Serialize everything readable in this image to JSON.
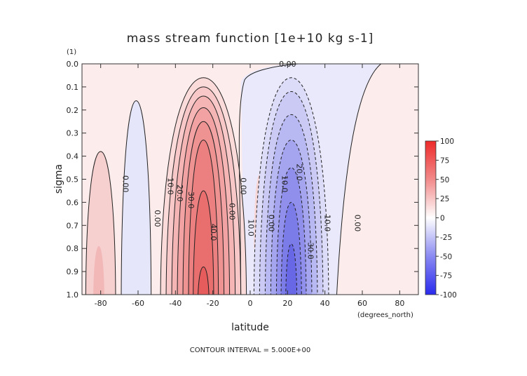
{
  "chart_data": {
    "type": "contour",
    "title": "mass stream function [1e+10 kg s-1]",
    "xlabel": "latitude",
    "ylabel": "sigma",
    "x_units": "(degrees_north)",
    "y_units": "(1)",
    "footer": "CONTOUR INTERVAL = 5.000E+00",
    "xlim": [
      -90,
      90
    ],
    "ylim": [
      1.0,
      0.0
    ],
    "x_ticks": [
      "-80",
      "-60",
      "-40",
      "-20",
      "0",
      "20",
      "40",
      "60",
      "80"
    ],
    "y_ticks": [
      "0.0",
      "0.1",
      "0.2",
      "0.3",
      "0.4",
      "0.5",
      "0.6",
      "0.7",
      "0.8",
      "0.9",
      "1.0"
    ],
    "contour_interval": 5.0,
    "colorbar": {
      "ticks": [
        "100",
        "75",
        "50",
        "25",
        "0",
        "-25",
        "-50",
        "-75",
        "-100"
      ],
      "positive_color": "#ee3a3a",
      "negative_color": "#3838ee"
    },
    "cells": [
      {
        "lat": -25,
        "sigma": 0.7,
        "peak": 45,
        "sign": "positive"
      },
      {
        "lat": 22,
        "sigma": 0.75,
        "peak": -40,
        "sign": "negative"
      },
      {
        "lat": -80,
        "sigma": 0.7,
        "peak": 10,
        "sign": "positive"
      },
      {
        "lat": -60,
        "sigma": 0.6,
        "peak": -7,
        "sign": "negative"
      },
      {
        "lat": 5,
        "sigma": 0.6,
        "peak": 10,
        "sign": "positive"
      }
    ],
    "contour_labels": [
      {
        "text": "0.00",
        "lat": 20,
        "sigma": 0.0
      },
      {
        "text": "0.00",
        "lat": -68,
        "sigma": 0.52
      },
      {
        "text": "10.0",
        "lat": -44,
        "sigma": 0.53
      },
      {
        "text": "20.0",
        "lat": -39,
        "sigma": 0.56
      },
      {
        "text": "30.0",
        "lat": -33,
        "sigma": 0.59
      },
      {
        "text": "0.00",
        "lat": -51,
        "sigma": 0.67
      },
      {
        "text": "40.0",
        "lat": -21,
        "sigma": 0.73
      },
      {
        "text": "0.00",
        "lat": -11,
        "sigma": 0.64
      },
      {
        "text": "0.00",
        "lat": -5,
        "sigma": 0.53
      },
      {
        "text": "10.0",
        "lat": 17,
        "sigma": 0.52
      },
      {
        "text": "20.0",
        "lat": 25,
        "sigma": 0.47
      },
      {
        "text": "10.0",
        "lat": -1,
        "sigma": 0.71
      },
      {
        "text": "0.00",
        "lat": 10,
        "sigma": 0.69
      },
      {
        "text": "10.0",
        "lat": 40,
        "sigma": 0.69
      },
      {
        "text": "30.0",
        "lat": 31,
        "sigma": 0.81
      },
      {
        "text": "0.00",
        "lat": 56,
        "sigma": 0.69
      }
    ]
  }
}
